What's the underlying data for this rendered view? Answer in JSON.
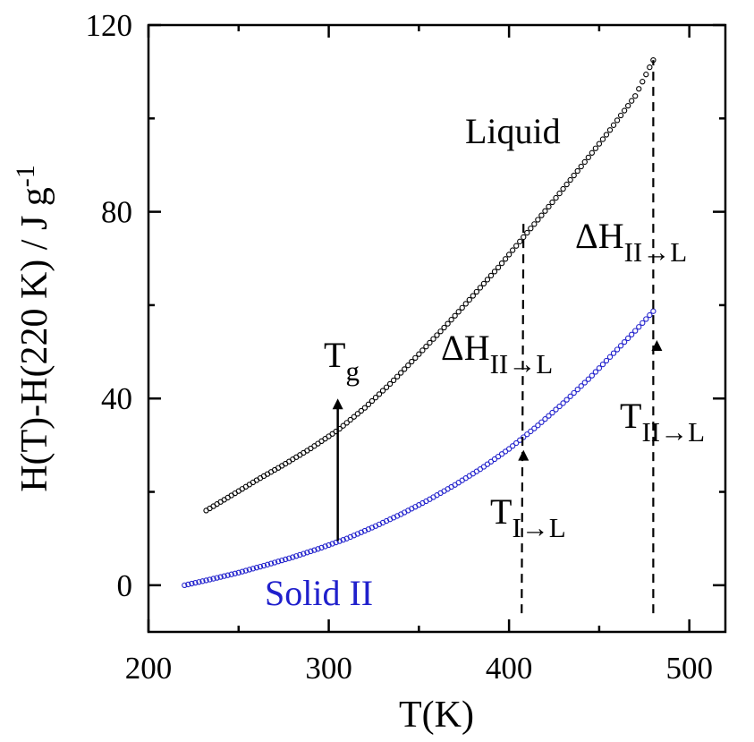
{
  "chart_data": {
    "type": "scatter",
    "title": "",
    "xlabel": "T(K)",
    "ylabel": "H(T)-H(220 K) / J g",
    "ylabel_sup": "-1",
    "xlim": [
      200,
      520
    ],
    "ylim": [
      -10,
      120
    ],
    "xticks": [
      200,
      300,
      400,
      500
    ],
    "yticks": [
      0,
      40,
      80,
      120
    ],
    "xtick_labels": [
      "200",
      "300",
      "400",
      "500"
    ],
    "ytick_labels": [
      "0",
      "40",
      "80",
      "120"
    ],
    "grid": false,
    "series": [
      {
        "name": "Liquid",
        "color": "#000000",
        "marker": "open-circle",
        "x": [
          232,
          245,
          260,
          275,
          290,
          305,
          320,
          335,
          350,
          365,
          380,
          395,
          410,
          425,
          440,
          455,
          470,
          480
        ],
        "y": [
          16.0,
          19.0,
          22.5,
          25.8,
          29.3,
          33.2,
          38.0,
          43.5,
          49.5,
          55.6,
          62.0,
          68.5,
          75.5,
          82.5,
          89.7,
          97.0,
          104.8,
          112.5
        ]
      },
      {
        "name": "Solid II",
        "color": "#2020cc",
        "marker": "open-circle",
        "x": [
          220,
          235,
          250,
          265,
          280,
          295,
          310,
          325,
          340,
          355,
          370,
          385,
          400,
          415,
          430,
          445,
          460,
          470,
          480
        ],
        "y": [
          0.0,
          1.3,
          2.7,
          4.3,
          6.0,
          7.9,
          10.0,
          12.5,
          15.2,
          18.2,
          21.5,
          25.1,
          29.2,
          33.9,
          39.0,
          44.5,
          50.5,
          54.5,
          58.7
        ]
      }
    ],
    "annotations": {
      "liquid_label": "Liquid",
      "solid_label": "Solid II",
      "tg": {
        "main": "T",
        "sub": "g"
      },
      "dh_upper": {
        "main": "ΔH",
        "sub": "II→L"
      },
      "dh_middle": {
        "main": "ΔH",
        "sub": "II→L"
      },
      "t_ii_l": {
        "main": "T",
        "sub": "II→L"
      },
      "t_i_l": {
        "main": "T",
        "sub": "I→L"
      }
    },
    "markers": {
      "tg_arrow": {
        "x": 305,
        "y_from": 9.5,
        "y_to": 40
      },
      "dashed_400": {
        "x": 408,
        "y_from": -6,
        "y_to": 78
      },
      "arrow_400": {
        "x": 408,
        "y_from": 24,
        "y_to": 29
      },
      "dashed_480": {
        "x": 480,
        "y_from": -6,
        "y_to": 112.5
      },
      "arrow_480": {
        "x": 482,
        "y_from": 50,
        "y_to": 52.5
      }
    }
  }
}
